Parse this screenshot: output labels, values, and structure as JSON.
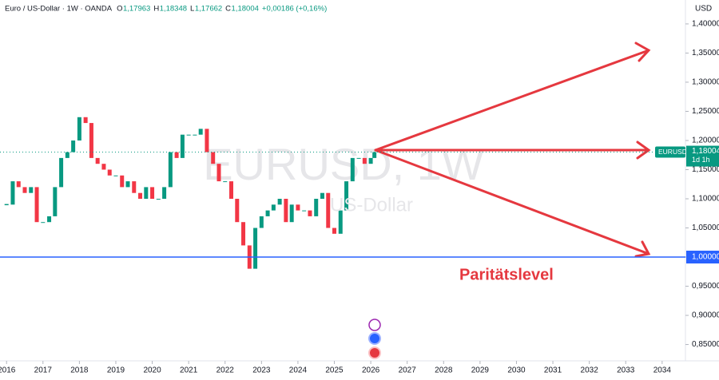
{
  "chart_data": {
    "type": "candlestick",
    "symbol_title": "Euro / US-Dollar · 1W · OANDA",
    "ohlc_labels": [
      "O",
      "H",
      "L",
      "C"
    ],
    "ohlc_values": [
      "1,17963",
      "1,18348",
      "1,17662",
      "1,18004"
    ],
    "change": "+0,00186 (+0,16%)",
    "watermark": "EURUSD, 1W",
    "watermark_sub": "US-Dollar",
    "currency": "USD",
    "symbol": "EURUSD",
    "countdown": "1d 1h",
    "annotation": "Paritätslevel",
    "up_color": "#089981",
    "down_color": "#f23645",
    "x": [
      2016.0,
      2016.17,
      2016.33,
      2016.5,
      2016.67,
      2016.83,
      2017.0,
      2017.17,
      2017.33,
      2017.5,
      2017.67,
      2017.83,
      2018.0,
      2018.17,
      2018.33,
      2018.5,
      2018.67,
      2018.83,
      2019.0,
      2019.17,
      2019.33,
      2019.5,
      2019.67,
      2019.83,
      2020.0,
      2020.17,
      2020.33,
      2020.5,
      2020.67,
      2020.83,
      2021.0,
      2021.17,
      2021.33,
      2021.5,
      2021.67,
      2021.83,
      2022.0,
      2022.17,
      2022.33,
      2022.5,
      2022.67,
      2022.83,
      2023.0,
      2023.17,
      2023.33,
      2023.5,
      2023.67,
      2023.83,
      2024.0,
      2024.17,
      2024.33,
      2024.5,
      2024.67,
      2024.83,
      2025.0,
      2025.17,
      2025.33,
      2025.5,
      2025.67,
      2025.83,
      2026.0,
      2026.1
    ],
    "close": [
      1.09,
      1.13,
      1.12,
      1.11,
      1.12,
      1.06,
      1.06,
      1.07,
      1.12,
      1.17,
      1.18,
      1.2,
      1.24,
      1.23,
      1.17,
      1.16,
      1.15,
      1.14,
      1.14,
      1.12,
      1.13,
      1.11,
      1.1,
      1.12,
      1.1,
      1.1,
      1.12,
      1.18,
      1.17,
      1.21,
      1.21,
      1.21,
      1.22,
      1.18,
      1.16,
      1.13,
      1.13,
      1.1,
      1.06,
      1.02,
      0.98,
      1.05,
      1.07,
      1.08,
      1.09,
      1.1,
      1.06,
      1.09,
      1.08,
      1.08,
      1.07,
      1.1,
      1.11,
      1.05,
      1.04,
      1.08,
      1.13,
      1.17,
      1.17,
      1.16,
      1.17,
      1.18
    ],
    "last_price": {
      "value": 1.18004,
      "label": "1,18004"
    },
    "parity_line": {
      "value": 1.0,
      "label": "1,00000",
      "color": "#2962ff"
    },
    "xlim": [
      2015.82,
      2034.64
    ],
    "xticks": [
      2016,
      2017,
      2018,
      2019,
      2020,
      2021,
      2022,
      2023,
      2024,
      2025,
      2026,
      2027,
      2028,
      2029,
      2030,
      2031,
      2032,
      2033,
      2034
    ],
    "ylim": [
      0.822,
      1.441
    ],
    "yticks": [
      {
        "value": 0.85,
        "label": "0,85000"
      },
      {
        "value": 0.9,
        "label": "0,90000"
      },
      {
        "value": 0.95,
        "label": "0,95000"
      },
      {
        "value": 1.0,
        "label": "1,00000"
      },
      {
        "value": 1.05,
        "label": "1,05000"
      },
      {
        "value": 1.1,
        "label": "1,10000"
      },
      {
        "value": 1.15,
        "label": "1,15000"
      },
      {
        "value": 1.2,
        "label": "1,20000"
      },
      {
        "value": 1.25,
        "label": "1,25000"
      },
      {
        "value": 1.3,
        "label": "1,30000"
      },
      {
        "value": 1.35,
        "label": "1,35000"
      },
      {
        "value": 1.4,
        "label": "1,40000"
      }
    ]
  }
}
